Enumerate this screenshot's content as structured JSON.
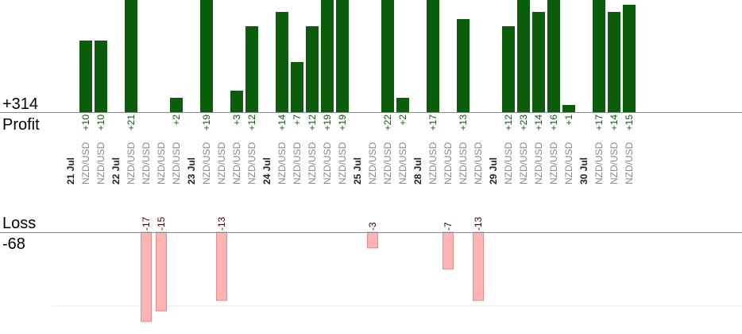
{
  "summary": {
    "profit_total": "+314",
    "profit_label": "Profit",
    "loss_label": "Loss",
    "loss_total": "-68"
  },
  "colors": {
    "profit": "#0b5c0b",
    "profit_text": "#0b5c0b",
    "loss_fill": "#ffb3b3",
    "loss_stroke": "#e68a8a",
    "loss_text": "#3a0000",
    "axis": "#888888",
    "grid": "#eeeeee"
  },
  "chart_data": {
    "type": "bar",
    "profit_ylim": [
      0,
      25
    ],
    "loss_ylim": [
      0,
      20
    ],
    "profit_gridlines": [
      16
    ],
    "loss_gridlines": [
      14
    ],
    "rows": [
      {
        "kind": "date",
        "label": "21 Jul"
      },
      {
        "kind": "trade",
        "pair": "NZD/USD",
        "value": 10,
        "label": "+10"
      },
      {
        "kind": "trade",
        "pair": "NZD/USD",
        "value": 10,
        "label": "+10"
      },
      {
        "kind": "date",
        "label": "22 Jul"
      },
      {
        "kind": "trade",
        "pair": "NZD/USD",
        "value": 21,
        "label": "+21"
      },
      {
        "kind": "trade",
        "pair": "NZD/USD",
        "value": -17,
        "label": "-17"
      },
      {
        "kind": "trade",
        "pair": "NZD/USD",
        "value": -15,
        "label": "-15"
      },
      {
        "kind": "trade",
        "pair": "NZD/USD",
        "value": 2,
        "label": "+2"
      },
      {
        "kind": "date",
        "label": "23 Jul"
      },
      {
        "kind": "trade",
        "pair": "NZD/USD",
        "value": 19,
        "label": "+19"
      },
      {
        "kind": "trade",
        "pair": "NZD/USD",
        "value": -13,
        "label": "-13"
      },
      {
        "kind": "trade",
        "pair": "NZD/USD",
        "value": 3,
        "label": "+3"
      },
      {
        "kind": "trade",
        "pair": "NZD/USD",
        "value": 12,
        "label": "+12"
      },
      {
        "kind": "date",
        "label": "24 Jul"
      },
      {
        "kind": "trade",
        "pair": "NZD/USD",
        "value": 14,
        "label": "+14"
      },
      {
        "kind": "trade",
        "pair": "NZD/USD",
        "value": 7,
        "label": "+7"
      },
      {
        "kind": "trade",
        "pair": "NZD/USD",
        "value": 12,
        "label": "+12"
      },
      {
        "kind": "trade",
        "pair": "NZD/USD",
        "value": 19,
        "label": "+19"
      },
      {
        "kind": "trade",
        "pair": "NZD/USD",
        "value": 19,
        "label": "+19"
      },
      {
        "kind": "date",
        "label": "25 Jul"
      },
      {
        "kind": "trade",
        "pair": "NZD/USD",
        "value": -3,
        "label": "-3"
      },
      {
        "kind": "trade",
        "pair": "NZD/USD",
        "value": 22,
        "label": "+22"
      },
      {
        "kind": "trade",
        "pair": "NZD/USD",
        "value": 2,
        "label": "+2"
      },
      {
        "kind": "date",
        "label": "28 Jul"
      },
      {
        "kind": "trade",
        "pair": "NZD/USD",
        "value": 17,
        "label": "+17"
      },
      {
        "kind": "trade",
        "pair": "NZD/USD",
        "value": -7,
        "label": "-7"
      },
      {
        "kind": "trade",
        "pair": "NZD/USD",
        "value": 13,
        "label": "+13"
      },
      {
        "kind": "trade",
        "pair": "NZD/USD",
        "value": -13,
        "label": "-13"
      },
      {
        "kind": "date",
        "label": "29 Jul"
      },
      {
        "kind": "trade",
        "pair": "NZD/USD",
        "value": 12,
        "label": "+12"
      },
      {
        "kind": "trade",
        "pair": "NZD/USD",
        "value": 23,
        "label": "+23"
      },
      {
        "kind": "trade",
        "pair": "NZD/USD",
        "value": 14,
        "label": "+14"
      },
      {
        "kind": "trade",
        "pair": "NZD/USD",
        "value": 16,
        "label": "+16"
      },
      {
        "kind": "trade",
        "pair": "NZD/USD",
        "value": 1,
        "label": "+1"
      },
      {
        "kind": "date",
        "label": "30 Jul"
      },
      {
        "kind": "trade",
        "pair": "NZD/USD",
        "value": 17,
        "label": "+17"
      },
      {
        "kind": "trade",
        "pair": "NZD/USD",
        "value": 14,
        "label": "+14"
      },
      {
        "kind": "trade",
        "pair": "NZD/USD",
        "value": 15,
        "label": "+15"
      }
    ]
  }
}
